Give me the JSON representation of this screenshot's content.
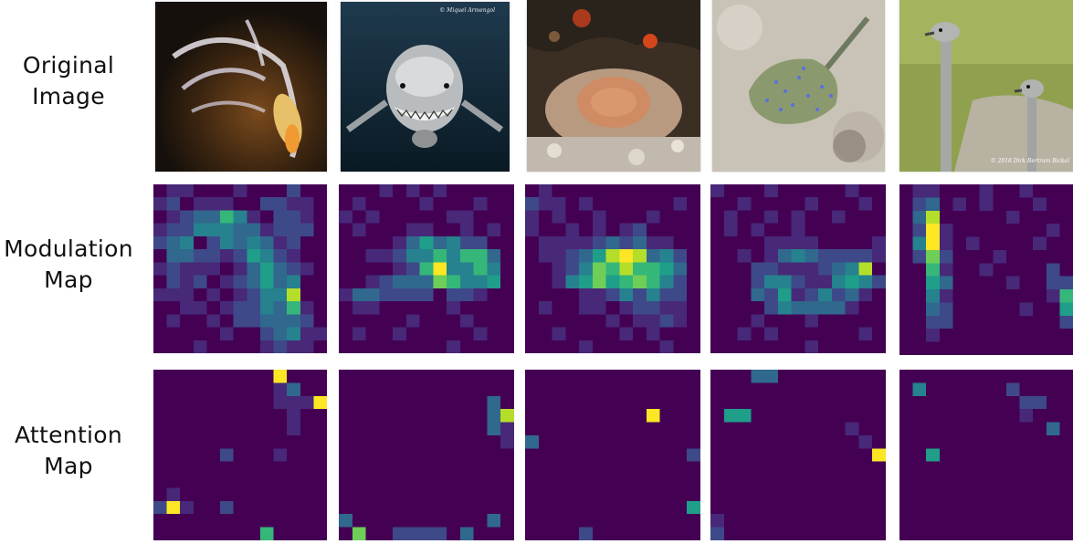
{
  "row_labels": {
    "original": [
      "Original",
      "Image"
    ],
    "modulation": [
      "Modulation",
      "Map"
    ],
    "attention": [
      "Attention",
      "Map"
    ]
  },
  "photos": [
    {
      "subject": "fish",
      "credit": ""
    },
    {
      "subject": "shark",
      "credit": "© Miquel Armengol"
    },
    {
      "subject": "coral-sponge",
      "credit": ""
    },
    {
      "subject": "stingray",
      "credit": ""
    },
    {
      "subject": "ostriches",
      "credit": "© 2018 Dirk Bertram Bickel"
    }
  ],
  "colormap": [
    "#440154",
    "#482878",
    "#3e4989",
    "#31688e",
    "#26828e",
    "#1f9e89",
    "#35b779",
    "#6ece58",
    "#b5de2b",
    "#fde725"
  ],
  "modulation_maps": [
    [
      "0110001000200",
      "1201110022110",
      "0123364102210",
      "1224443312220",
      "2340243431200",
      "0332212542100",
      "1211101353210",
      "0212012353400",
      "1110101244800",
      "0011012243610",
      "0100102233320",
      "0000010023411",
      "0001000012110"
    ],
    [
      "0001010100000",
      "0100001000100",
      "1010000011000",
      "0100011001010",
      "0000135342200",
      "0011244646630",
      "0000126944640",
      "0012333764450",
      "1332222022100",
      "0110000010000",
      "0000010001000",
      "0100100000100",
      "0000000010000"
    ],
    [
      "0100000000000",
      "2110100000010",
      "1010010001000",
      "1001010120000",
      "0111123231100",
      "0112358983420",
      "0012476866530",
      "0014575676420",
      "0000112424220",
      "0100110122110",
      "0000001011210",
      "0010000101000",
      "0000100000100"
    ],
    [
      "1000100000100",
      "0010000100010",
      "0100101001000",
      "0101001000000",
      "0000111100001",
      "0010134322221",
      "0002211123480",
      "0002442114542",
      "0003251242310",
      "0000243333100",
      "0001000100000",
      "0010100000010",
      "0000000100000"
    ],
    [
      "0110001001000",
      "0230101000100",
      "0380000010000",
      "0291000000010",
      "0491010000100",
      "0272000100000",
      "0061001000020",
      "0053000010022",
      "0041000000016",
      "0032000001005",
      "0022000000002",
      "0010000000000",
      "0000000000000"
    ]
  ],
  "attention_maps": [
    [
      "0000000009000",
      "0000000001300",
      "0000000001119",
      "0000000000100",
      "0000000000100",
      "0000000000000",
      "0000020001000",
      "0000000000000",
      "0000000000000",
      "0100000000000",
      "2910020000000",
      "0000000000000",
      "0000000060000"
    ],
    [
      "0000000000000",
      "0000000000000",
      "0000000000030",
      "0000000000038",
      "0000000000031",
      "0000000000001",
      "0000000000000",
      "0000000000000",
      "0000000000000",
      "0000000000000",
      "0000000000000",
      "3000000000030",
      "0700222203000"
    ],
    [
      "0000000000000",
      "0000000000000",
      "0000000000000",
      "0000000009000",
      "0000000000000",
      "3000000000000",
      "0000000000002",
      "0000000000000",
      "0000000000000",
      "0000000000000",
      "0000000000005",
      "0000000000000",
      "0000200000000"
    ],
    [
      "0003300000000",
      "0000000000000",
      "0000000000000",
      "0550000000000",
      "0000000000100",
      "0000000000010",
      "0000000000009",
      "0000000000000",
      "0000000000000",
      "0000000000000",
      "0000000000000",
      "1000000000000",
      "2000000000000"
    ],
    [
      "0000000000000",
      "0400000020000",
      "0000000002200",
      "0000000001000",
      "0000000000030",
      "0000000000000",
      "0050000000000",
      "0000000000000",
      "0000000000000",
      "0000000000000",
      "0000000000000",
      "0000000000000",
      "0000000000000"
    ]
  ]
}
